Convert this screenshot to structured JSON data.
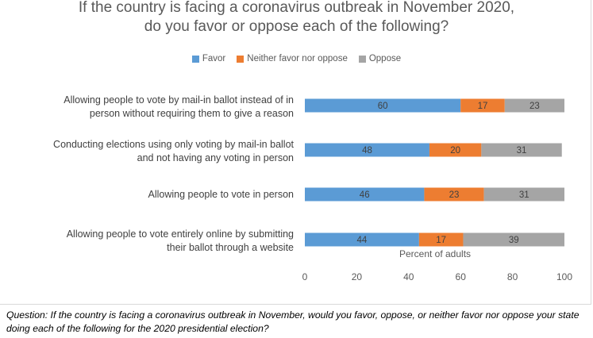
{
  "chart_data": {
    "type": "bar",
    "orientation": "horizontal",
    "stacked": true,
    "title": [
      "If the country is facing a coronavirus outbreak in November 2020,",
      "do you favor or oppose each of the following?"
    ],
    "categories": [
      [
        "Allowing people to vote by mail-in ballot instead of in",
        "person without requiring them to give a reason"
      ],
      [
        "Conducting elections using only voting by mail-in ballot",
        "and not having any voting in person"
      ],
      [
        "Allowing people to vote in person"
      ],
      [
        "Allowing people to vote entirely online by submitting",
        "their ballot through a website"
      ]
    ],
    "series": [
      {
        "name": "Favor",
        "color": "#5b9bd5",
        "values": [
          60,
          48,
          46,
          44
        ]
      },
      {
        "name": "Neither favor nor oppose",
        "color": "#ed7d31",
        "values": [
          17,
          20,
          23,
          17
        ]
      },
      {
        "name": "Oppose",
        "color": "#a5a5a5",
        "values": [
          23,
          31,
          31,
          39
        ]
      }
    ],
    "xlabel": "Percent of adults",
    "xlim": [
      0,
      100
    ],
    "xticks": [
      "0",
      "20",
      "40",
      "60",
      "80",
      "100"
    ],
    "grid": false,
    "legend_position": "top"
  },
  "footnote": "Question: If the country is facing a coronavirus outbreak in November, would you favor, oppose, or neither favor nor oppose your state doing each of the following for the 2020 presidential election?"
}
